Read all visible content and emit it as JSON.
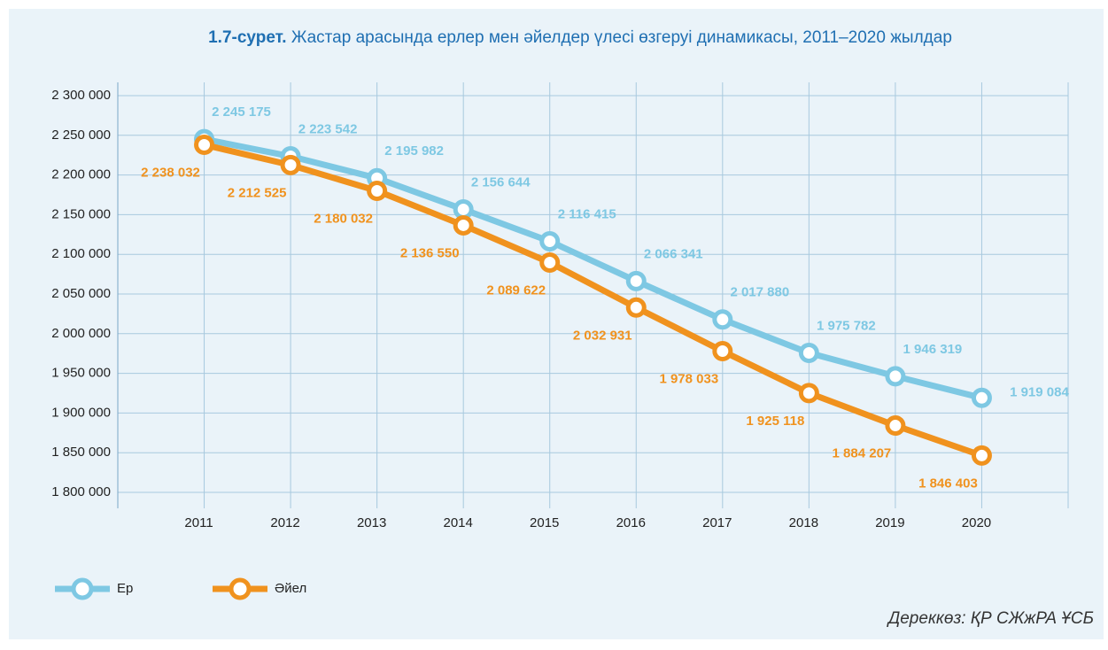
{
  "chart_data": {
    "type": "line",
    "title_number": "1.7-сурет.",
    "title": "Жастар арасында ерлер мен әйелдер үлесі өзгеруі динамикасы, 2011–2020 жылдар",
    "source": "Дереккөз: ҚР СЖжРА ҰСБ",
    "categories": [
      "2011",
      "2012",
      "2013",
      "2014",
      "2015",
      "2016",
      "2017",
      "2018",
      "2019",
      "2020"
    ],
    "series": [
      {
        "name": "Ер",
        "color": "#7ec8e3",
        "values": [
          2245175,
          2223542,
          2195982,
          2156644,
          2116415,
          2066341,
          2017880,
          1975782,
          1946319,
          1919084
        ],
        "value_labels": [
          "2 245 175",
          "2 223 542",
          "2 195 982",
          "2 156 644",
          "2 116 415",
          "2 066 341",
          "2 017 880",
          "1 975 782",
          "1 946 319",
          "1 919 084"
        ]
      },
      {
        "name": "Әйел",
        "color": "#f0921e",
        "values": [
          2238032,
          2212525,
          2180032,
          2136550,
          2089622,
          2032931,
          1978033,
          1925118,
          1884207,
          1846403
        ],
        "value_labels": [
          "2 238 032",
          "2 212 525",
          "2 180 032",
          "2 136 550",
          "2 089 622",
          "2 032 931",
          "1 978 033",
          "1 925 118",
          "1 884 207",
          "1 846 403"
        ]
      }
    ],
    "ylim": [
      1800000,
      2300000
    ],
    "yticks": [
      {
        "value": 1800000,
        "label": "1 800 000"
      },
      {
        "value": 1850000,
        "label": "1 850 000"
      },
      {
        "value": 1900000,
        "label": "1 900 000"
      },
      {
        "value": 1950000,
        "label": "1 950 000"
      },
      {
        "value": 2000000,
        "label": "2 000 000"
      },
      {
        "value": 2050000,
        "label": "2 050 000"
      },
      {
        "value": 2100000,
        "label": "2 100 000"
      },
      {
        "value": 2150000,
        "label": "2 150 000"
      },
      {
        "value": 2200000,
        "label": "2 200 000"
      },
      {
        "value": 2250000,
        "label": "2 250 000"
      },
      {
        "value": 2300000,
        "label": "2 300 000"
      }
    ],
    "grid": true,
    "legend": "bottom-left"
  }
}
